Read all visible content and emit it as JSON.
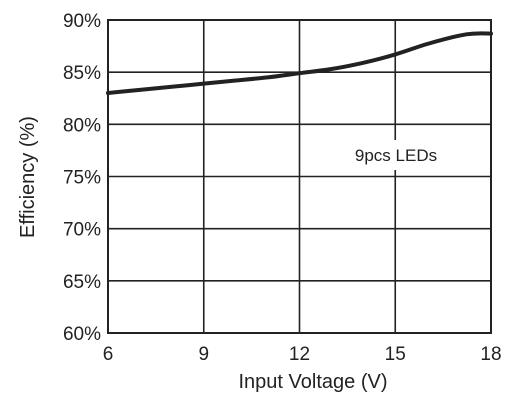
{
  "chart_data": {
    "type": "line",
    "xlabel": "Input Voltage (V)",
    "ylabel": "Efficiency (%)",
    "xlim": [
      6,
      18
    ],
    "ylim": [
      60,
      90
    ],
    "xticks": [
      "6",
      "9",
      "12",
      "15",
      "18"
    ],
    "yticks": [
      "90%",
      "85%",
      "80%",
      "75%",
      "70%",
      "65%",
      "60%"
    ],
    "grid": true,
    "annotation": "9pcs LEDs",
    "series": [
      {
        "x": [
          6,
          7,
          8,
          9,
          10,
          11,
          12,
          13,
          14,
          15,
          16,
          17,
          17.5,
          18
        ],
        "y": [
          83.0,
          83.3,
          83.6,
          83.9,
          84.2,
          84.5,
          84.9,
          85.3,
          85.9,
          86.7,
          87.7,
          88.5,
          88.7,
          88.7
        ]
      }
    ]
  }
}
